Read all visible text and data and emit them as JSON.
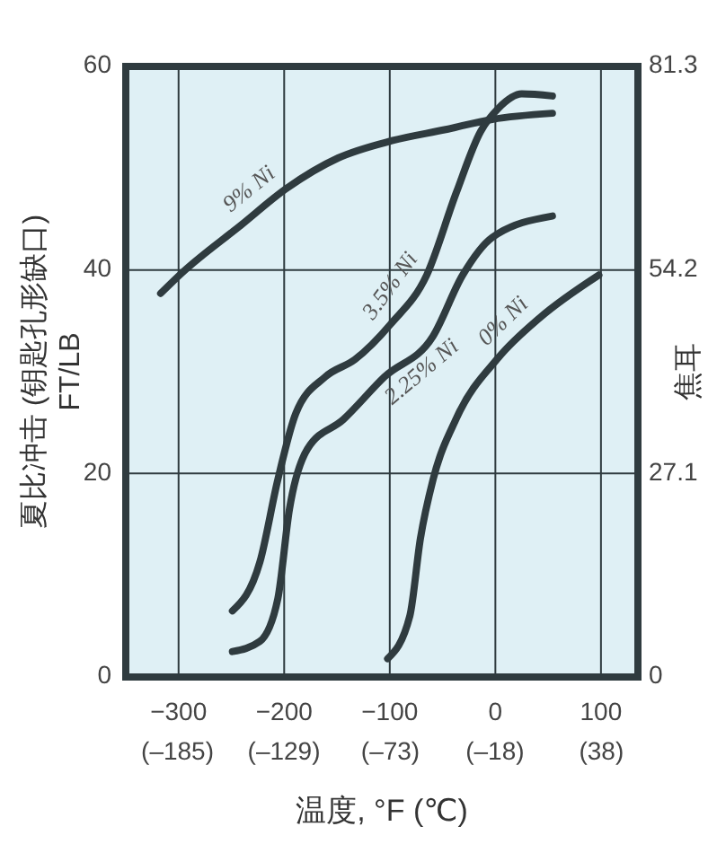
{
  "chart_data": {
    "type": "line",
    "xlabel": "温度, °F (℃)",
    "ylabel": "夏比冲击 (钥匙孔形缺口)\nFT/LB",
    "y2label": "焦耳",
    "xlim": [
      -350,
      135
    ],
    "xticks": [
      -300,
      -200,
      -100,
      0,
      100
    ],
    "x2lim": [
      -212.2,
      57.2
    ],
    "x2ticks": [
      {
        "value": -185,
        "label": "(–185)"
      },
      {
        "value": -129,
        "label": "(–129)"
      },
      {
        "value": -73,
        "label": "(–73)"
      },
      {
        "value": -18,
        "label": "(–18)"
      },
      {
        "value": 38,
        "label": "(38)"
      }
    ],
    "ylim": [
      0,
      60
    ],
    "yticks": [
      0,
      20,
      40,
      60
    ],
    "y2lim": [
      0,
      81.3
    ],
    "y2ticks": [
      0,
      27.1,
      54.2,
      81.3
    ],
    "grid": true,
    "line_style": "solid",
    "marker": "none",
    "series": [
      {
        "name": "9% Ni",
        "color": "#2f3b3f",
        "x": [
          -317,
          -297,
          -241,
          -198,
          -149,
          -98,
          -47,
          -3,
          54
        ],
        "values": [
          37.7,
          39.7,
          44.4,
          48,
          51,
          52.7,
          53.8,
          54.8,
          55.4
        ]
      },
      {
        "name": "3.5% Ni",
        "color": "#2f3b3f",
        "x": [
          -249,
          -223,
          -206,
          -189,
          -161,
          -133,
          -99,
          -65,
          -37,
          -14,
          3,
          25,
          54
        ],
        "values": [
          6.5,
          11.3,
          19.4,
          25.9,
          29.5,
          31.2,
          34.7,
          39.5,
          47.6,
          53.6,
          55.9,
          57.3,
          57.1
        ]
      },
      {
        "name": "2.25% Ni",
        "color": "#2f3b3f",
        "x": [
          -249,
          -223,
          -206,
          -195,
          -178,
          -144,
          -105,
          -59,
          -31,
          -3,
          54
        ],
        "values": [
          2.5,
          3.5,
          7.7,
          16.5,
          22.4,
          25.3,
          29.5,
          33.5,
          39.5,
          43.2,
          45.3
        ]
      },
      {
        "name": "0% Ni",
        "color": "#2f3b3f",
        "x": [
          -102,
          -81,
          -71,
          -59,
          -37,
          3,
          42,
          98
        ],
        "values": [
          1.8,
          6,
          13.6,
          19.4,
          25.4,
          31.4,
          35.3,
          39.5
        ]
      }
    ]
  }
}
